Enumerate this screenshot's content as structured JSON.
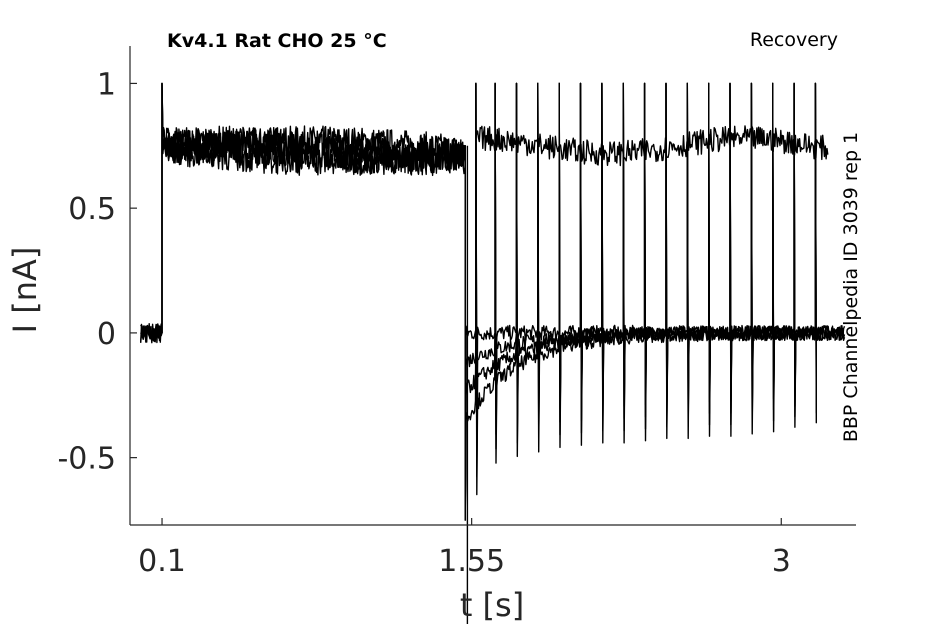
{
  "chart_data": {
    "type": "line",
    "title_left": "Kv4.1  Rat  CHO  25 °C",
    "title_right": "Recovery",
    "side_label": "BBP Channelpedia ID 3039 rep 1",
    "xlabel": "t [s]",
    "ylabel": "I [nA]",
    "xlim": [
      -0.05,
      3.35
    ],
    "ylim": [
      -0.77,
      1.15
    ],
    "x_ticks": [
      {
        "value": 0.1,
        "label": "0.1"
      },
      {
        "value": 1.55,
        "label": "1.55"
      },
      {
        "value": 3,
        "label": "3"
      }
    ],
    "y_ticks": [
      {
        "value": 1,
        "label": "1"
      },
      {
        "value": 0.5,
        "label": "0.5"
      },
      {
        "value": 0,
        "label": "0"
      },
      {
        "value": -0.5,
        "label": "-0.5"
      }
    ],
    "grid": false,
    "line_color": "#000000",
    "protocol": {
      "baseline_start": -0.0,
      "step_on": 0.1,
      "conditioning_end": 1.52,
      "trace_end": 3.3,
      "sustained_level": 0.75,
      "peak_level": 1.0,
      "return_level": 0.0,
      "tail_min": -0.75,
      "recovery_test_times": [
        1.57,
        1.66,
        1.76,
        1.86,
        1.96,
        2.06,
        2.16,
        2.26,
        2.36,
        2.46,
        2.56,
        2.66,
        2.76,
        2.86,
        2.96,
        3.06,
        3.16
      ],
      "recovery_tail_mins": [
        -0.72,
        -0.58,
        -0.55,
        -0.53,
        -0.51,
        -0.5,
        -0.49,
        -0.49,
        -0.48,
        -0.47,
        -0.47,
        -0.46,
        -0.46,
        -0.45,
        -0.44,
        -0.42,
        -0.4
      ]
    }
  }
}
